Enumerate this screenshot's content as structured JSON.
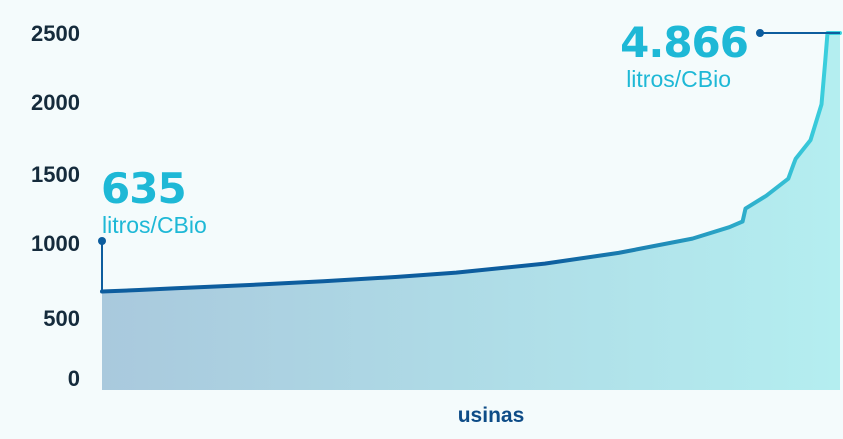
{
  "chart_data": {
    "type": "area",
    "xlabel": "usinas",
    "ylabel": "",
    "ylim": [
      0,
      2500
    ],
    "y_ticks": [
      "0",
      "500",
      "1000",
      "1500",
      "2000",
      "2500"
    ],
    "x": [
      0,
      0.05,
      0.1,
      0.2,
      0.3,
      0.4,
      0.48,
      0.6,
      0.7,
      0.8,
      0.85,
      0.868,
      0.872,
      0.9,
      0.93,
      0.937,
      0.94,
      0.96,
      0.975,
      0.98,
      0.983,
      1.0
    ],
    "values": [
      690,
      700,
      712,
      735,
      762,
      792,
      822,
      885,
      960,
      1060,
      1140,
      1180,
      1270,
      1360,
      1480,
      1580,
      1620,
      1750,
      2000,
      2300,
      2500,
      2500
    ],
    "annotations": [
      {
        "value": "635",
        "unit": "litros/CBio"
      },
      {
        "value": "4.866",
        "unit": "litros/CBio"
      }
    ],
    "grid": false,
    "legend": "none"
  },
  "colors": {
    "line_start": "#0d5d9e",
    "line_end": "#3dd4e0",
    "fill_start": "#a9c9dd",
    "fill_end": "#b4eef0",
    "accent": "#1eb8d6",
    "label": "#152b3c",
    "xlabel": "#0e4c87"
  }
}
